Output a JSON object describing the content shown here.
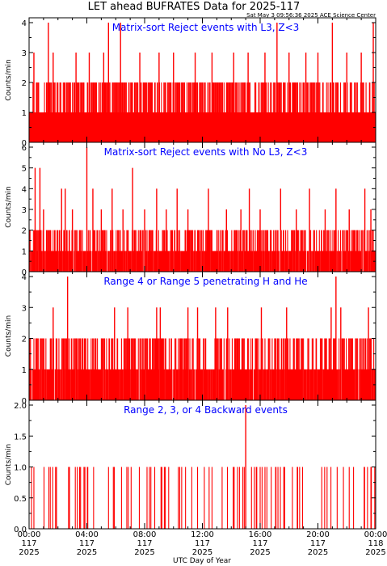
{
  "page": {
    "title": "LET ahead BUFRATES Data for 2025-117",
    "timestamp": "Sat May  3 09:56:36 2025 ACE Science Center",
    "xlabel": "UTC Day of Year",
    "x_tick_labels": [
      [
        "00:00",
        "117",
        "2025"
      ],
      [
        "04:00",
        "117",
        "2025"
      ],
      [
        "08:00",
        "117",
        "2025"
      ],
      [
        "12:00",
        "117",
        "2025"
      ],
      [
        "16:00",
        "117",
        "2025"
      ],
      [
        "20:00",
        "117",
        "2025"
      ],
      [
        "00:00",
        "118",
        "2025"
      ]
    ]
  },
  "colors": {
    "data": "#ff0000",
    "panel_title": "#0000ff",
    "axes": "#000000"
  },
  "chart_data": [
    {
      "type": "bar",
      "title": "Matrix-sort Reject events with L3, Z<3",
      "ylabel": "Counts/min",
      "ylim": [
        0,
        4
      ],
      "yticks": [
        "0",
        "1",
        "2",
        "3",
        "4"
      ],
      "xlim": [
        "2025-117 00:00",
        "2025-118 00:00"
      ],
      "series": [
        {
          "x_unit": "minutes since 2025-117 00:00",
          "resolution": "1 min",
          "baseline_values": [
            1,
            2
          ],
          "spikes": [
            {
              "x": 80,
              "y": 4
            },
            {
              "x": 195,
              "y": 3
            },
            {
              "x": 330,
              "y": 4
            },
            {
              "x": 380,
              "y": 4
            },
            {
              "x": 1030,
              "y": 4
            },
            {
              "x": 1260,
              "y": 4
            },
            {
              "x": 1430,
              "y": 4
            },
            {
              "x": 1380,
              "y": 3
            },
            {
              "x": 20,
              "y": 3
            },
            {
              "x": 100,
              "y": 3
            },
            {
              "x": 250,
              "y": 3
            },
            {
              "x": 310,
              "y": 3
            },
            {
              "x": 460,
              "y": 3
            },
            {
              "x": 540,
              "y": 3
            },
            {
              "x": 600,
              "y": 3
            },
            {
              "x": 690,
              "y": 3
            },
            {
              "x": 760,
              "y": 3
            },
            {
              "x": 850,
              "y": 3
            },
            {
              "x": 910,
              "y": 3
            },
            {
              "x": 980,
              "y": 3
            },
            {
              "x": 1080,
              "y": 3
            },
            {
              "x": 1150,
              "y": 3
            },
            {
              "x": 1200,
              "y": 3
            },
            {
              "x": 1320,
              "y": 3
            }
          ]
        }
      ]
    },
    {
      "type": "bar",
      "title": "Matrix-sort Reject events with No L3, Z<3",
      "ylabel": "Counts/min",
      "ylim": [
        0,
        6
      ],
      "yticks": [
        "0",
        "1",
        "2",
        "3",
        "4",
        "5",
        "6"
      ],
      "xlim": [
        "2025-117 00:00",
        "2025-118 00:00"
      ],
      "series": [
        {
          "x_unit": "minutes since 2025-117 00:00",
          "resolution": "1 min",
          "baseline_values": [
            0,
            1,
            2
          ],
          "spikes": [
            {
              "x": 240,
              "y": 6
            },
            {
              "x": 430,
              "y": 5
            },
            {
              "x": 25,
              "y": 5
            },
            {
              "x": 45,
              "y": 5
            },
            {
              "x": 135,
              "y": 4
            },
            {
              "x": 150,
              "y": 4
            },
            {
              "x": 265,
              "y": 4
            },
            {
              "x": 345,
              "y": 4
            },
            {
              "x": 530,
              "y": 4
            },
            {
              "x": 615,
              "y": 4
            },
            {
              "x": 745,
              "y": 4
            },
            {
              "x": 915,
              "y": 4
            },
            {
              "x": 1045,
              "y": 4
            },
            {
              "x": 1165,
              "y": 4
            },
            {
              "x": 1275,
              "y": 4
            },
            {
              "x": 1395,
              "y": 4
            },
            {
              "x": 60,
              "y": 3
            },
            {
              "x": 180,
              "y": 3
            },
            {
              "x": 300,
              "y": 3
            },
            {
              "x": 390,
              "y": 3
            },
            {
              "x": 480,
              "y": 3
            },
            {
              "x": 570,
              "y": 3
            },
            {
              "x": 660,
              "y": 3
            },
            {
              "x": 820,
              "y": 3
            },
            {
              "x": 880,
              "y": 3
            },
            {
              "x": 960,
              "y": 3
            },
            {
              "x": 1110,
              "y": 3
            },
            {
              "x": 1230,
              "y": 3
            },
            {
              "x": 1330,
              "y": 3
            },
            {
              "x": 1420,
              "y": 3
            }
          ]
        }
      ]
    },
    {
      "type": "bar",
      "title": "Range 4 or Range 5 penetrating H and He",
      "ylabel": "Counts/min",
      "ylim": [
        0,
        4
      ],
      "yticks": [
        "0",
        "1",
        "2",
        "3",
        "4"
      ],
      "xlim": [
        "2025-117 00:00",
        "2025-118 00:00"
      ],
      "series": [
        {
          "x_unit": "minutes since 2025-117 00:00",
          "resolution": "1 min",
          "baseline_values": [
            0,
            1,
            2
          ],
          "spikes": [
            {
              "x": 160,
              "y": 4
            },
            {
              "x": 1275,
              "y": 4
            },
            {
              "x": 100,
              "y": 3
            },
            {
              "x": 355,
              "y": 3
            },
            {
              "x": 410,
              "y": 3
            },
            {
              "x": 530,
              "y": 3
            },
            {
              "x": 545,
              "y": 3
            },
            {
              "x": 660,
              "y": 3
            },
            {
              "x": 700,
              "y": 3
            },
            {
              "x": 775,
              "y": 3
            },
            {
              "x": 825,
              "y": 3
            },
            {
              "x": 965,
              "y": 3
            },
            {
              "x": 1070,
              "y": 3
            },
            {
              "x": 1255,
              "y": 3
            },
            {
              "x": 1295,
              "y": 3
            },
            {
              "x": 1410,
              "y": 3
            }
          ]
        }
      ]
    },
    {
      "type": "bar",
      "title": "Range 2, 3, or 4 Backward events",
      "ylabel": "Counts/min",
      "ylim": [
        0,
        2
      ],
      "yticks": [
        "0.0",
        "0.5",
        "1.0",
        "1.5",
        "2.0"
      ],
      "xlim": [
        "2025-117 00:00",
        "2025-118 00:00"
      ],
      "series": [
        {
          "x_unit": "minutes since 2025-117 00:00",
          "resolution": "1 min",
          "baseline_values": [
            0,
            1
          ],
          "spikes": [
            {
              "x": 900,
              "y": 2
            }
          ]
        }
      ]
    }
  ]
}
